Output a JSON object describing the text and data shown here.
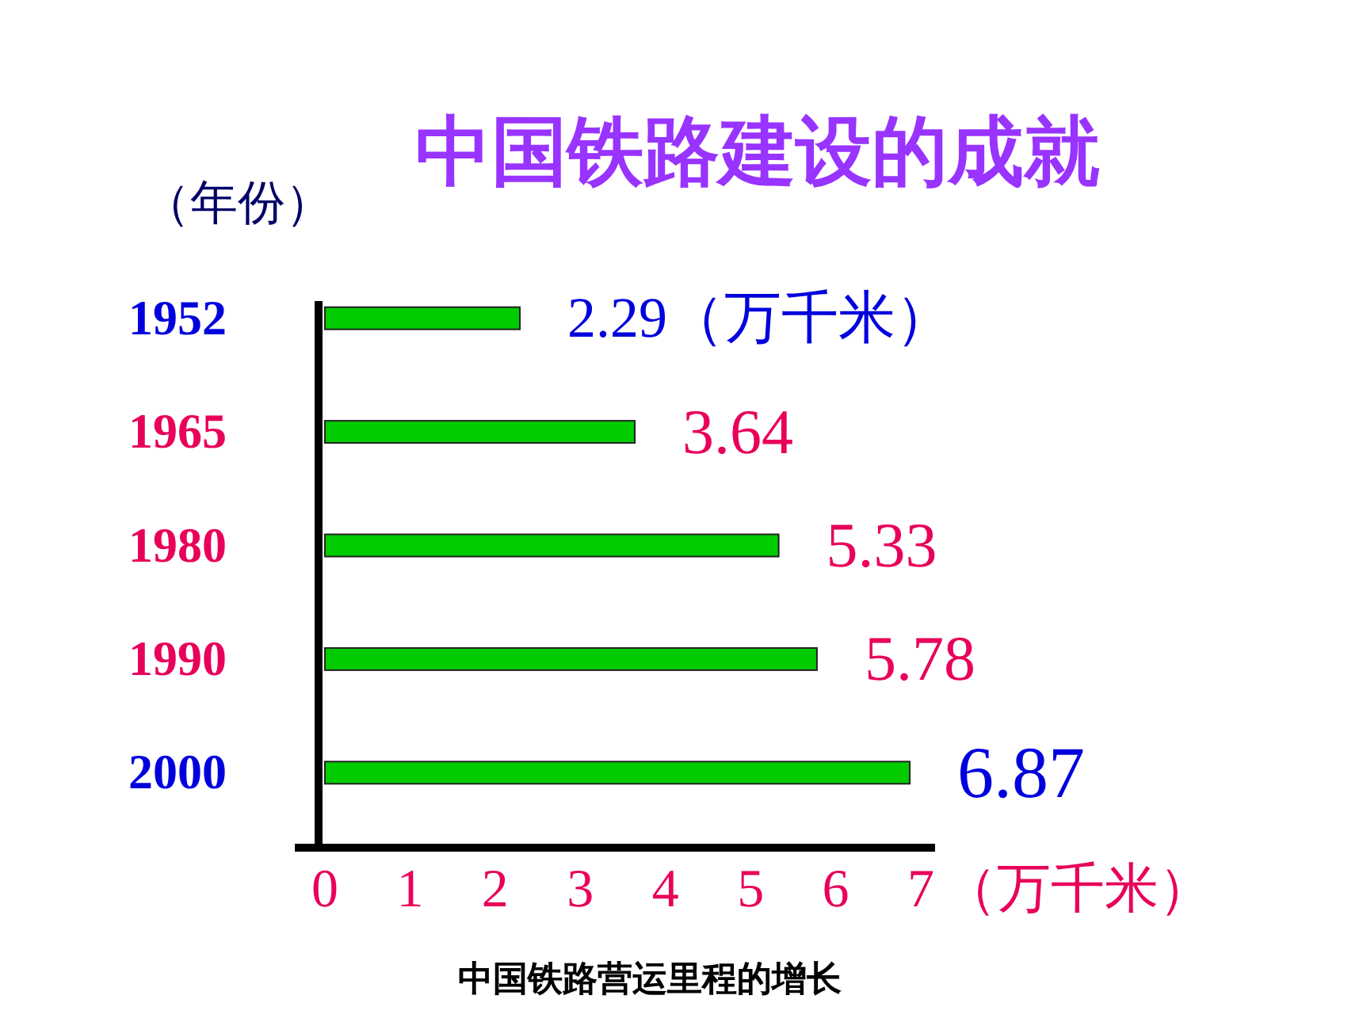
{
  "chart_data": {
    "type": "bar",
    "orientation": "horizontal",
    "title": "中国铁路建设的成就",
    "ylabel": "（年份）",
    "xlabel": "（万千米）",
    "categories": [
      "1952",
      "1965",
      "1980",
      "1990",
      "2000"
    ],
    "values": [
      2.29,
      3.64,
      5.33,
      5.78,
      6.87
    ],
    "value_labels": [
      "2.29（万千米）",
      "3.64",
      "5.33",
      "5.78",
      "6.87"
    ],
    "color": "#00cc00",
    "xlim": [
      0,
      7
    ],
    "xticks": [
      0,
      1,
      2,
      3,
      4,
      5,
      6,
      7
    ],
    "annotations": [
      "中国铁路营运里程的增长"
    ]
  }
}
